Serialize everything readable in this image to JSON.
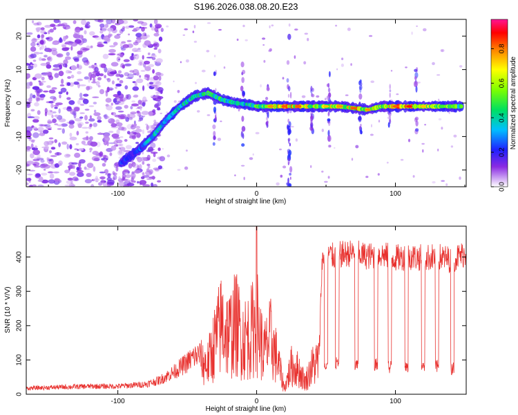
{
  "title": "S196.2026.038.08.20.E23",
  "chart_data": [
    {
      "type": "heatmap",
      "xlabel": "Height of straight line (km)",
      "ylabel": "Frequency (Hz)",
      "xlim": [
        -166,
        151
      ],
      "ylim": [
        -25,
        25
      ],
      "xticks": [
        -100,
        0,
        100
      ],
      "yticks": [
        -20,
        -10,
        0,
        10,
        20
      ],
      "colorbar": {
        "label": "Normalized spectral amplitude",
        "range": [
          0,
          0.97
        ],
        "ticks": [
          0.0,
          0.2,
          0.4,
          0.6,
          0.8
        ]
      },
      "ridge": {
        "description": "dominant frequency ridge",
        "x": [
          -98,
          -85,
          -75,
          -65,
          -55,
          -45,
          -35,
          -25,
          -15,
          -5,
          0,
          10,
          20,
          30,
          40,
          50,
          60,
          70,
          80,
          90,
          100,
          110,
          120,
          130,
          140,
          148
        ],
        "frequency": [
          -18,
          -14,
          -10,
          -5,
          -1,
          2,
          3,
          1,
          0,
          -0.5,
          -1,
          -1,
          -1,
          -1,
          -1,
          -1,
          -1,
          -1.5,
          -2,
          -1,
          -1,
          -1,
          -1,
          -1,
          -1,
          -1
        ],
        "amplitude": [
          0.25,
          0.3,
          0.45,
          0.4,
          0.45,
          0.5,
          0.55,
          0.5,
          0.45,
          0.5,
          0.6,
          0.8,
          0.85,
          0.85,
          0.7,
          0.75,
          0.8,
          0.85,
          0.8,
          0.7,
          0.85,
          0.9,
          0.75,
          0.7,
          0.65,
          0.6
        ]
      }
    },
    {
      "type": "line",
      "xlabel": "Height of straight line (km)",
      "ylabel": "SNR (10 * V/V)",
      "xlim": [
        -166,
        151
      ],
      "ylim": [
        0,
        490
      ],
      "xticks": [
        -100,
        0,
        100
      ],
      "yticks": [
        0,
        100,
        200,
        300,
        400
      ],
      "series": [
        {
          "name": "SNR",
          "color": "#e8312e",
          "x": [
            -166,
            -140,
            -120,
            -100,
            -80,
            -70,
            -60,
            -50,
            -45,
            -40,
            -35,
            -30,
            -25,
            -20,
            -15,
            -10,
            -5,
            0,
            5,
            10,
            15,
            20,
            25,
            30,
            35,
            40,
            45,
            47,
            50,
            55,
            60,
            70,
            80,
            90,
            100,
            110,
            120,
            130,
            140,
            151
          ],
          "y": [
            15,
            18,
            20,
            20,
            25,
            35,
            55,
            80,
            95,
            100,
            100,
            170,
            230,
            190,
            230,
            180,
            190,
            240,
            130,
            180,
            110,
            20,
            90,
            80,
            40,
            90,
            110,
            390,
            420,
            410,
            415,
            420,
            410,
            415,
            405,
            410,
            405,
            410,
            400,
            420
          ]
        }
      ],
      "dropouts": {
        "description": "periodic low dips",
        "x": [
          50,
          58,
          72,
          86,
          96,
          108,
          120,
          130,
          141
        ],
        "y": [
          70,
          70,
          65,
          65,
          60,
          60,
          55,
          60,
          55
        ]
      }
    }
  ]
}
